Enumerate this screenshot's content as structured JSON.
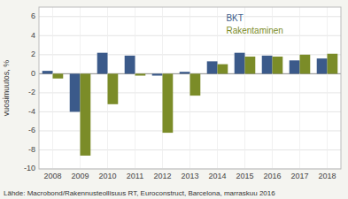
{
  "chart_data": {
    "type": "bar",
    "categories": [
      "2008",
      "2009",
      "2010",
      "2011",
      "2012",
      "2013",
      "2014",
      "2015",
      "2016",
      "2017",
      "2018"
    ],
    "series": [
      {
        "name": "BKT",
        "color": "#3B5A8A",
        "values": [
          0.3,
          -4.0,
          2.2,
          1.9,
          -0.2,
          0.2,
          1.3,
          2.2,
          1.9,
          1.4,
          1.6
        ]
      },
      {
        "name": "Rakentaminen",
        "color": "#7B8C28",
        "values": [
          -0.5,
          -8.6,
          -3.2,
          -0.2,
          -6.2,
          -2.3,
          1.0,
          1.8,
          1.8,
          2.0,
          2.1
        ]
      }
    ],
    "y_label": "vuosimuutos, %",
    "ylim": [
      -10,
      7
    ],
    "yticks": [
      -10,
      -8,
      -6,
      -4,
      -2,
      0,
      2,
      4,
      6
    ],
    "grid": true,
    "legend": "upper right",
    "annotations": [
      "Lähde: Macrobond/Rakennusteollisuus RT, Euroconstruct, Barcelona, marraskuu 2016"
    ]
  }
}
